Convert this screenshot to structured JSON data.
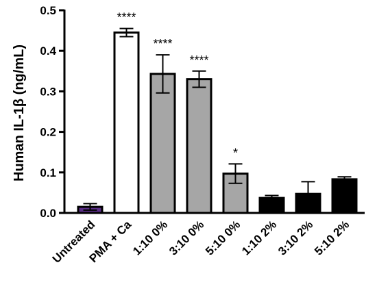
{
  "chart_data": {
    "type": "bar",
    "ylabel": "Human IL-1β (ng/mL)",
    "xlabel": "",
    "ylim": [
      0,
      0.5
    ],
    "yticks": [
      "0.0",
      "0.1",
      "0.2",
      "0.3",
      "0.4",
      "0.5"
    ],
    "grid": false,
    "categories": [
      "Untreated",
      "PMA + Ca",
      "1:10 0%",
      "3:10 0%",
      "5:10 0%",
      "1:10 2%",
      "3:10 2%",
      "5:10 2%"
    ],
    "values": [
      0.015,
      0.445,
      0.343,
      0.33,
      0.097,
      0.037,
      0.047,
      0.083
    ],
    "error": [
      0.008,
      0.01,
      0.047,
      0.02,
      0.024,
      0.006,
      0.03,
      0.006
    ],
    "significance": [
      "",
      "****",
      "****",
      "****",
      "*",
      "",
      "",
      ""
    ],
    "colors": {
      "bar_fill": [
        "#5a2d86",
        "#ffffff",
        "#a6a6a6",
        "#a6a6a6",
        "#a6a6a6",
        "#000000",
        "#000000",
        "#000000"
      ],
      "bar_stroke": "#000000"
    }
  }
}
